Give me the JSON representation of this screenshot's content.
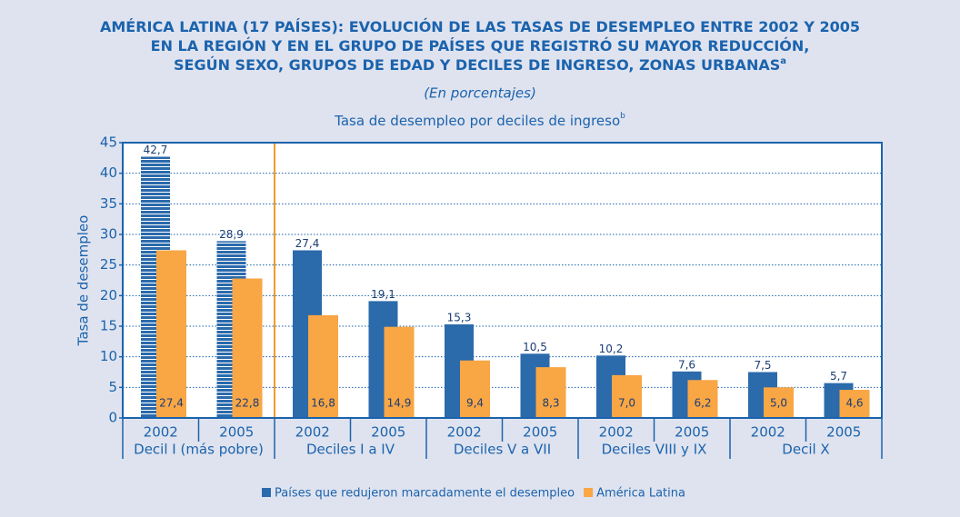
{
  "chart_data": {
    "type": "bar",
    "title": [
      "AMÉRICA LATINA (17 PAÍSES): EVOLUCIÓN DE LAS TASAS DE DESEMPLEO ENTRE 2002 Y 2005",
      "EN LA REGIÓN Y EN EL GRUPO DE PAÍSES QUE REGISTRÓ SU MAYOR REDUCCIÓN,",
      "SEGÚN SEXO, GRUPOS DE EDAD Y DECILES DE INGRESO, ZONAS URBANAS"
    ],
    "title_superscript": "a",
    "subtitle": "(En porcentajes)",
    "chart_title": "Tasa de desempleo por deciles de ingreso",
    "chart_title_superscript": "b",
    "y_label": "Tasa de desempleo",
    "categories": [
      "2002",
      "2005",
      "2002",
      "2005",
      "2002",
      "2005",
      "2002",
      "2005",
      "2002",
      "2005"
    ],
    "groups": [
      "Decil I (más pobre)",
      "Deciles I a IV",
      "Deciles V a VII",
      "Deciles VIII y IX",
      "Decil X"
    ],
    "series": [
      {
        "name": "Países que redujeron marcadamente el desempleo",
        "color": "#2b6aab",
        "values": [
          42.7,
          28.9,
          27.4,
          19.1,
          15.3,
          10.5,
          10.2,
          7.6,
          7.5,
          5.7
        ],
        "value_labels": [
          "42,7",
          "28,9",
          "27,4",
          "19,1",
          "15,3",
          "10,5",
          "10,2",
          "7,6",
          "7,5",
          "5,7"
        ]
      },
      {
        "name": "América Latina",
        "color": "#f9a645",
        "values": [
          27.4,
          22.8,
          16.8,
          14.9,
          9.4,
          8.3,
          7.0,
          6.2,
          5.0,
          4.6
        ],
        "value_labels": [
          "27,4",
          "22,8",
          "16,8",
          "14,9",
          "9,4",
          "8,3",
          "7,0",
          "6,2",
          "5,0",
          "4,6"
        ]
      }
    ],
    "hatch_first_group": true,
    "ylim": [
      0,
      45
    ],
    "yticks": [
      0,
      5,
      10,
      15,
      20,
      25,
      30,
      35,
      40,
      45
    ],
    "grid": true,
    "legend": "bottom"
  }
}
